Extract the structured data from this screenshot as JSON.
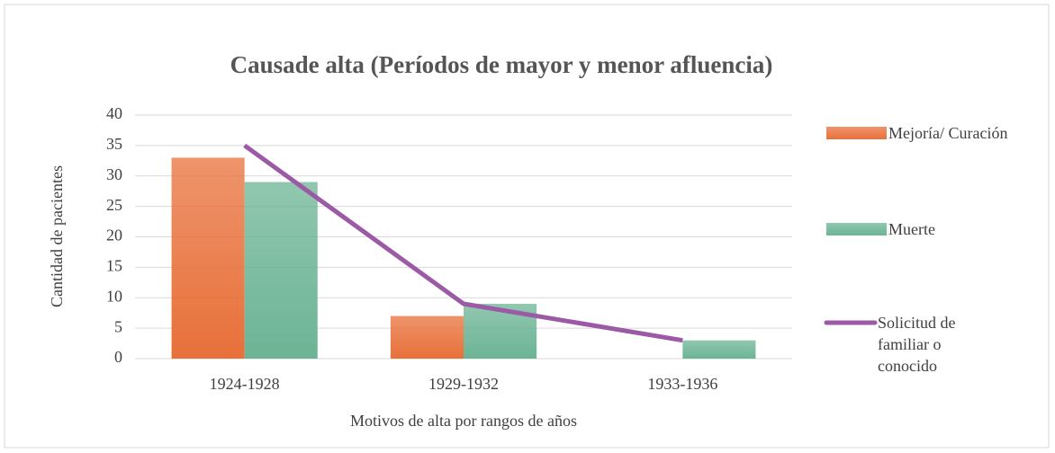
{
  "chart_data": {
    "type": "bar",
    "title": "Causade alta (Períodos de mayor y menor afluencia)",
    "x_label": "Motivos de alta por rangos de años",
    "y_label": "Cantidad de pacientes",
    "categories": [
      "1924-1928",
      "1929-1932",
      "1933-1936"
    ],
    "series": [
      {
        "name": "Mejoría/ Curación",
        "color": "#e8703a",
        "values": [
          33,
          7,
          0
        ]
      },
      {
        "name": "Muerte",
        "color": "#6cb495",
        "values": [
          29,
          9,
          3
        ]
      },
      {
        "name": "Solicitud de familiar o conocido",
        "color": "#9c5aa6",
        "type": "line",
        "values": [
          35,
          9,
          3
        ]
      }
    ],
    "ylim": [
      0,
      40
    ],
    "yticks": [
      0,
      5,
      10,
      15,
      20,
      25,
      30,
      35,
      40
    ],
    "grid": true,
    "legend": "right"
  }
}
